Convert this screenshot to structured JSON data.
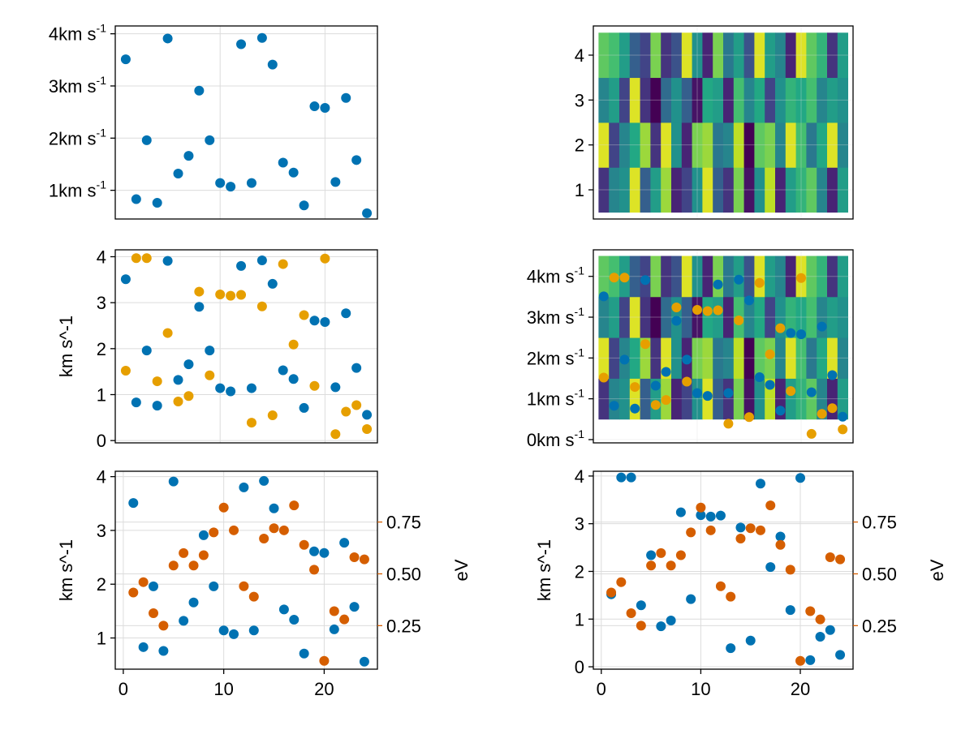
{
  "colors": {
    "blue": "#0072b2",
    "orange": "#e69f00",
    "vermillion": "#d55e00",
    "frame": "#000000",
    "grid": "#dcdcdc"
  },
  "chart_data": [
    {
      "id": "p1",
      "type": "scatter",
      "xlim": [
        0,
        25
      ],
      "ylim": [
        0.45,
        4.15
      ],
      "grid": true,
      "show_x_ticks": false,
      "y_ticks": [
        {
          "v": 1,
          "main": "1km s",
          "sup": "-1"
        },
        {
          "v": 2,
          "main": "2km s",
          "sup": "-1"
        },
        {
          "v": 3,
          "main": "3km s",
          "sup": "-1"
        },
        {
          "v": 4,
          "main": "4km s",
          "sup": "-1"
        }
      ],
      "series": [
        {
          "color": "blue",
          "x": [
            1,
            2,
            3,
            4,
            5,
            6,
            7,
            8,
            9,
            10,
            11,
            12,
            13,
            14,
            15,
            16,
            17,
            18,
            19,
            20,
            21,
            22,
            23,
            24
          ],
          "y": [
            3.51,
            0.83,
            1.96,
            0.76,
            3.91,
            1.32,
            1.66,
            2.91,
            1.96,
            1.14,
            1.07,
            3.8,
            1.14,
            3.92,
            3.41,
            1.53,
            1.34,
            0.71,
            2.61,
            2.58,
            1.16,
            2.77,
            1.58,
            0.56
          ]
        }
      ]
    },
    {
      "id": "p2",
      "type": "heatmap",
      "xlim": [
        0,
        25
      ],
      "ylim": [
        0.35,
        4.65
      ],
      "grid": true,
      "show_x_ticks": false,
      "y_ticks": [
        {
          "v": 1,
          "main": "1"
        },
        {
          "v": 2,
          "main": "2"
        },
        {
          "v": 3,
          "main": "3"
        },
        {
          "v": 4,
          "main": "4"
        }
      ],
      "columns": 24,
      "rows": 4,
      "values": [
        [
          0.15,
          0.45,
          0.5,
          0.95,
          0.3,
          0.55,
          0.85,
          0.1,
          0.2,
          0.5,
          0.95,
          0.3,
          0.15,
          0.8,
          0.05,
          0.5,
          0.9,
          0.1,
          0.55,
          0.65,
          0.75,
          0.45,
          0.1,
          0.55
        ],
        [
          0.95,
          0.2,
          0.45,
          0.6,
          0.85,
          0.15,
          0.95,
          0.5,
          0.1,
          0.8,
          0.85,
          0.4,
          0.45,
          0.9,
          0.0,
          0.75,
          0.8,
          0.45,
          0.95,
          0.7,
          0.4,
          0.6,
          0.95,
          0.45
        ],
        [
          0.45,
          0.55,
          0.2,
          0.95,
          0.15,
          0.0,
          0.35,
          0.5,
          0.3,
          0.05,
          0.6,
          0.55,
          0.1,
          0.7,
          0.45,
          0.6,
          0.2,
          0.5,
          0.65,
          0.6,
          0.7,
          0.45,
          0.55,
          0.5
        ],
        [
          0.75,
          0.7,
          0.55,
          0.3,
          0.2,
          0.8,
          0.15,
          0.25,
          0.95,
          0.5,
          0.1,
          0.8,
          0.4,
          0.55,
          0.25,
          0.95,
          0.55,
          0.45,
          0.1,
          0.95,
          0.75,
          0.65,
          0.15,
          0.55
        ]
      ]
    },
    {
      "id": "p3",
      "type": "scatter",
      "xlim": [
        0,
        25
      ],
      "ylim": [
        -0.05,
        4.15
      ],
      "grid": true,
      "show_x_ticks": false,
      "ylabel": "km s^-1",
      "y_ticks": [
        {
          "v": 0,
          "main": "0"
        },
        {
          "v": 1,
          "main": "1"
        },
        {
          "v": 2,
          "main": "2"
        },
        {
          "v": 3,
          "main": "3"
        },
        {
          "v": 4,
          "main": "4"
        }
      ],
      "series": [
        {
          "color": "blue",
          "x": [
            1,
            2,
            3,
            4,
            5,
            6,
            7,
            8,
            9,
            10,
            11,
            12,
            13,
            14,
            15,
            16,
            17,
            18,
            19,
            20,
            21,
            22,
            23,
            24
          ],
          "y": [
            3.51,
            0.83,
            1.96,
            0.76,
            3.91,
            1.32,
            1.66,
            2.91,
            1.96,
            1.14,
            1.07,
            3.8,
            1.14,
            3.92,
            3.41,
            1.53,
            1.34,
            0.71,
            2.61,
            2.58,
            1.16,
            2.77,
            1.58,
            0.56
          ]
        },
        {
          "color": "orange",
          "x": [
            1,
            2,
            3,
            4,
            5,
            6,
            7,
            8,
            9,
            10,
            11,
            12,
            13,
            14,
            15,
            16,
            17,
            18,
            19,
            20,
            21,
            22,
            23,
            24
          ],
          "y": [
            1.52,
            3.97,
            3.97,
            1.29,
            2.34,
            0.85,
            0.97,
            3.24,
            1.42,
            3.18,
            3.15,
            3.17,
            0.39,
            2.92,
            0.55,
            3.84,
            2.09,
            2.73,
            1.19,
            3.96,
            0.14,
            0.63,
            0.77,
            0.25
          ]
        }
      ]
    },
    {
      "id": "p4",
      "type": "heatmap",
      "xlim": [
        0,
        25
      ],
      "ylim": [
        -0.08,
        4.65
      ],
      "grid": true,
      "show_x_ticks": false,
      "y_ticks": [
        {
          "v": 0,
          "main": "0km s",
          "sup": "-1"
        },
        {
          "v": 1,
          "main": "1km s",
          "sup": "-1"
        },
        {
          "v": 2,
          "main": "2km s",
          "sup": "-1"
        },
        {
          "v": 3,
          "main": "3km s",
          "sup": "-1"
        },
        {
          "v": 4,
          "main": "4km s",
          "sup": "-1"
        }
      ],
      "columns": 24,
      "rows": 4,
      "cell_y_range": [
        0.5,
        4.5
      ],
      "values": [
        [
          0.15,
          0.45,
          0.5,
          0.95,
          0.3,
          0.55,
          0.85,
          0.1,
          0.2,
          0.5,
          0.95,
          0.3,
          0.15,
          0.8,
          0.05,
          0.5,
          0.9,
          0.1,
          0.55,
          0.65,
          0.75,
          0.45,
          0.1,
          0.55
        ],
        [
          0.95,
          0.2,
          0.45,
          0.6,
          0.85,
          0.15,
          0.95,
          0.5,
          0.1,
          0.8,
          0.85,
          0.4,
          0.45,
          0.9,
          0.0,
          0.75,
          0.8,
          0.45,
          0.95,
          0.7,
          0.4,
          0.6,
          0.95,
          0.45
        ],
        [
          0.45,
          0.55,
          0.2,
          0.95,
          0.15,
          0.0,
          0.35,
          0.5,
          0.3,
          0.05,
          0.6,
          0.55,
          0.1,
          0.7,
          0.45,
          0.6,
          0.2,
          0.5,
          0.65,
          0.6,
          0.7,
          0.45,
          0.55,
          0.5
        ],
        [
          0.75,
          0.7,
          0.55,
          0.3,
          0.2,
          0.8,
          0.15,
          0.25,
          0.95,
          0.5,
          0.1,
          0.8,
          0.4,
          0.55,
          0.25,
          0.95,
          0.55,
          0.45,
          0.1,
          0.95,
          0.75,
          0.65,
          0.15,
          0.55
        ]
      ],
      "series": [
        {
          "color": "blue",
          "x": [
            1,
            2,
            3,
            4,
            5,
            6,
            7,
            8,
            9,
            10,
            11,
            12,
            13,
            14,
            15,
            16,
            17,
            18,
            19,
            20,
            21,
            22,
            23,
            24
          ],
          "y": [
            3.51,
            0.83,
            1.96,
            0.76,
            3.91,
            1.32,
            1.66,
            2.91,
            1.96,
            1.14,
            1.07,
            3.8,
            1.14,
            3.92,
            3.41,
            1.53,
            1.34,
            0.71,
            2.61,
            2.58,
            1.16,
            2.77,
            1.58,
            0.56
          ]
        },
        {
          "color": "orange",
          "x": [
            1,
            2,
            3,
            4,
            5,
            6,
            7,
            8,
            9,
            10,
            11,
            12,
            13,
            14,
            15,
            16,
            17,
            18,
            19,
            20,
            21,
            22,
            23,
            24
          ],
          "y": [
            1.52,
            3.97,
            3.97,
            1.29,
            2.34,
            0.85,
            0.97,
            3.24,
            1.42,
            3.18,
            3.15,
            3.17,
            0.39,
            2.92,
            0.55,
            3.84,
            2.09,
            2.73,
            1.19,
            3.96,
            0.14,
            0.63,
            0.77,
            0.25
          ]
        }
      ]
    },
    {
      "id": "p5",
      "type": "scatter",
      "xlim": [
        -0.8,
        25.3
      ],
      "ylim": [
        0.42,
        4.1
      ],
      "grid": true,
      "show_x_ticks": true,
      "x_ticks": [
        {
          "v": 0,
          "main": "0"
        },
        {
          "v": 10,
          "main": "10"
        },
        {
          "v": 20,
          "main": "20"
        }
      ],
      "ylabel": "km s^-1",
      "y_ticks": [
        {
          "v": 1,
          "main": "1"
        },
        {
          "v": 2,
          "main": "2"
        },
        {
          "v": 3,
          "main": "3"
        },
        {
          "v": 4,
          "main": "4"
        }
      ],
      "y2label": "eV",
      "y2lim": [
        0.04,
        0.995
      ],
      "y2_ticks": [
        {
          "v": 0.25,
          "main": "0.25"
        },
        {
          "v": 0.5,
          "main": "0.50"
        },
        {
          "v": 0.75,
          "main": "0.75"
        }
      ],
      "series": [
        {
          "color": "blue",
          "axis": "left",
          "x": [
            1,
            2,
            3,
            4,
            5,
            6,
            7,
            8,
            9,
            10,
            11,
            12,
            13,
            14,
            15,
            16,
            17,
            18,
            19,
            20,
            21,
            22,
            23,
            24
          ],
          "y": [
            3.51,
            0.83,
            1.96,
            0.76,
            3.91,
            1.32,
            1.66,
            2.91,
            1.96,
            1.14,
            1.07,
            3.8,
            1.14,
            3.92,
            3.41,
            1.53,
            1.34,
            0.71,
            2.61,
            2.58,
            1.16,
            2.77,
            1.58,
            0.56
          ]
        },
        {
          "color": "vermillion",
          "axis": "right",
          "x": [
            1,
            2,
            3,
            4,
            5,
            6,
            7,
            8,
            9,
            10,
            11,
            12,
            13,
            14,
            15,
            16,
            17,
            18,
            19,
            20,
            21,
            22,
            23,
            24
          ],
          "y": [
            0.41,
            0.46,
            0.31,
            0.25,
            0.54,
            0.6,
            0.54,
            0.59,
            0.7,
            0.82,
            0.71,
            0.44,
            0.39,
            0.67,
            0.72,
            0.71,
            0.83,
            0.64,
            0.52,
            0.08,
            0.32,
            0.28,
            0.58,
            0.57
          ]
        }
      ]
    },
    {
      "id": "p6",
      "type": "scatter",
      "xlim": [
        -0.8,
        25.3
      ],
      "ylim": [
        -0.05,
        4.1
      ],
      "grid": true,
      "show_x_ticks": true,
      "x_ticks": [
        {
          "v": 0,
          "main": "0"
        },
        {
          "v": 10,
          "main": "10"
        },
        {
          "v": 20,
          "main": "20"
        }
      ],
      "ylabel": "km s^-1",
      "y_ticks": [
        {
          "v": 0,
          "main": "0"
        },
        {
          "v": 1,
          "main": "1"
        },
        {
          "v": 2,
          "main": "2"
        },
        {
          "v": 3,
          "main": "3"
        },
        {
          "v": 4,
          "main": "4"
        }
      ],
      "y2label": "eV",
      "y2lim": [
        0.04,
        0.995
      ],
      "y2_ticks": [
        {
          "v": 0.25,
          "main": "0.25"
        },
        {
          "v": 0.5,
          "main": "0.50"
        },
        {
          "v": 0.75,
          "main": "0.75"
        }
      ],
      "series": [
        {
          "color": "blue",
          "axis": "left",
          "x": [
            1,
            2,
            3,
            4,
            5,
            6,
            7,
            8,
            9,
            10,
            11,
            12,
            13,
            14,
            15,
            16,
            17,
            18,
            19,
            20,
            21,
            22,
            23,
            24
          ],
          "y": [
            1.52,
            3.97,
            3.97,
            1.29,
            2.34,
            0.85,
            0.97,
            3.24,
            1.42,
            3.18,
            3.15,
            3.17,
            0.39,
            2.92,
            0.55,
            3.84,
            2.09,
            2.73,
            1.19,
            3.96,
            0.14,
            0.63,
            0.77,
            0.25
          ]
        },
        {
          "color": "vermillion",
          "axis": "right",
          "x": [
            1,
            2,
            3,
            4,
            5,
            6,
            7,
            8,
            9,
            10,
            11,
            12,
            13,
            14,
            15,
            16,
            17,
            18,
            19,
            20,
            21,
            22,
            23,
            24
          ],
          "y": [
            0.41,
            0.46,
            0.31,
            0.25,
            0.54,
            0.6,
            0.54,
            0.59,
            0.7,
            0.82,
            0.71,
            0.44,
            0.39,
            0.67,
            0.72,
            0.71,
            0.83,
            0.64,
            0.52,
            0.08,
            0.32,
            0.28,
            0.58,
            0.57
          ]
        }
      ]
    }
  ]
}
